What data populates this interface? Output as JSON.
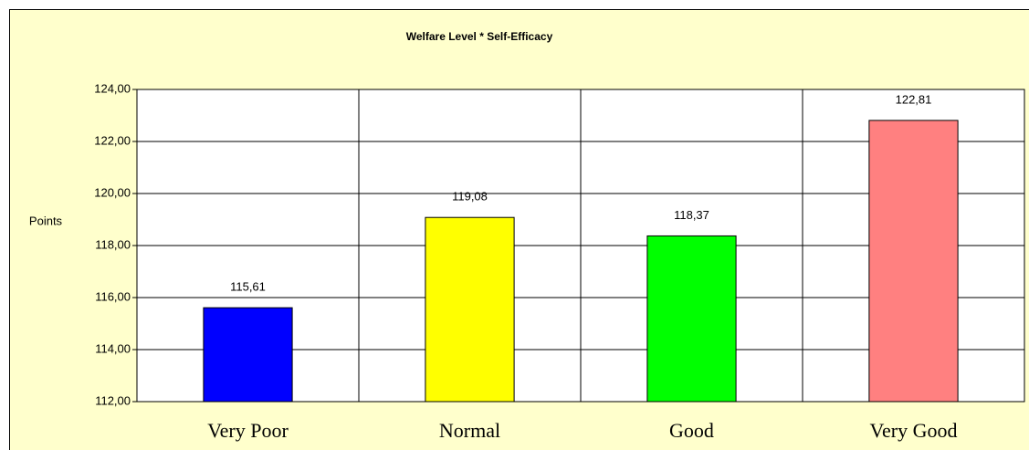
{
  "chart_data": {
    "type": "bar",
    "title": "Welfare Level * Self-Efficacy",
    "y_label": "Points",
    "categories": [
      "Very Poor",
      "Normal",
      "Good",
      "Very Good"
    ],
    "values": [
      115.61,
      119.08,
      118.37,
      122.81
    ],
    "value_labels": [
      "115,61",
      "119,08",
      "118,37",
      "122,81"
    ],
    "colors": [
      "#0000ff",
      "#ffff00",
      "#00ff00",
      "#ff8080"
    ],
    "ylim": [
      112,
      124
    ],
    "yticks": [
      {
        "value": 112,
        "label": "112,00"
      },
      {
        "value": 114,
        "label": "114,00"
      },
      {
        "value": 116,
        "label": "116,00"
      },
      {
        "value": 118,
        "label": "118,00"
      },
      {
        "value": 120,
        "label": "120,00"
      },
      {
        "value": 122,
        "label": "122,00"
      },
      {
        "value": 124,
        "label": "124,00"
      }
    ],
    "grid": true
  }
}
